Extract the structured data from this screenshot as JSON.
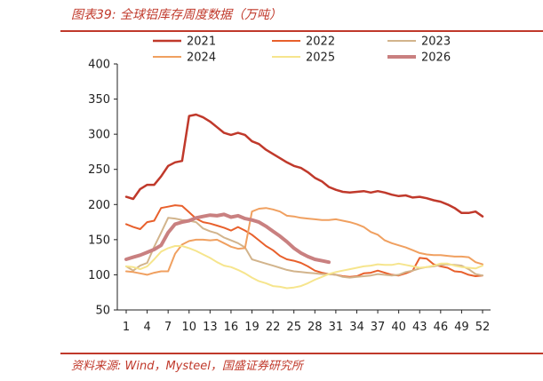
{
  "header": {
    "title": "图表39:  全球铝库存周度数据（万吨）"
  },
  "footer": {
    "source": "资料来源:  Wind，Mysteel，国盛证券研究所"
  },
  "chart_data": {
    "type": "line",
    "title": "图表39:  全球铝库存周度数据（万吨）",
    "xlabel": "",
    "ylabel": "",
    "x_ticks": [
      1,
      4,
      7,
      10,
      13,
      16,
      19,
      22,
      25,
      28,
      31,
      34,
      37,
      40,
      43,
      46,
      49,
      52
    ],
    "xlim": [
      1,
      52
    ],
    "ylim": [
      50,
      400
    ],
    "y_ticks": [
      50,
      100,
      150,
      200,
      250,
      300,
      350,
      400
    ],
    "grid": false,
    "legend": "top",
    "series": [
      {
        "name": "2021",
        "color": "#c0392b",
        "width": 2.5,
        "x": [
          1,
          2,
          3,
          4,
          5,
          6,
          7,
          8,
          9,
          10,
          11,
          12,
          13,
          14,
          15,
          16,
          17,
          18,
          19,
          20,
          21,
          22,
          23,
          24,
          25,
          26,
          27,
          28,
          29,
          30,
          31,
          32,
          33,
          34,
          35,
          36,
          37,
          38,
          39,
          40,
          41,
          42,
          43,
          44,
          45,
          46,
          47,
          48,
          49,
          50,
          51,
          52
        ],
        "values": [
          211,
          208,
          222,
          228,
          228,
          240,
          255,
          260,
          262,
          326,
          328,
          324,
          318,
          310,
          302,
          299,
          302,
          299,
          290,
          286,
          278,
          272,
          266,
          260,
          255,
          252,
          246,
          238,
          233,
          225,
          221,
          218,
          217,
          218,
          219,
          217,
          219,
          217,
          214,
          212,
          213,
          210,
          211,
          209,
          206,
          204,
          200,
          195,
          188,
          188,
          190,
          183
        ]
      },
      {
        "name": "2022",
        "color": "#e8602c",
        "width": 2,
        "x": [
          1,
          2,
          3,
          4,
          5,
          6,
          7,
          8,
          9,
          10,
          11,
          12,
          13,
          14,
          15,
          16,
          17,
          18,
          19,
          20,
          21,
          22,
          23,
          24,
          25,
          26,
          27,
          28,
          29,
          30,
          31,
          32,
          33,
          34,
          35,
          36,
          37,
          38,
          39,
          40,
          41,
          42,
          43,
          44,
          45,
          46,
          47,
          48,
          49,
          50,
          51,
          52
        ],
        "values": [
          172,
          168,
          165,
          175,
          177,
          195,
          197,
          199,
          198,
          189,
          180,
          175,
          173,
          170,
          167,
          163,
          168,
          163,
          157,
          149,
          141,
          135,
          127,
          122,
          120,
          117,
          112,
          106,
          103,
          101,
          100,
          98,
          97,
          98,
          102,
          103,
          106,
          103,
          100,
          99,
          102,
          106,
          124,
          123,
          115,
          112,
          110,
          105,
          104,
          100,
          98,
          99
        ]
      },
      {
        "name": "2023",
        "color": "#d2b48c",
        "width": 2,
        "x": [
          1,
          2,
          3,
          4,
          5,
          6,
          7,
          8,
          9,
          10,
          11,
          12,
          13,
          14,
          15,
          16,
          17,
          18,
          19,
          20,
          21,
          22,
          23,
          24,
          25,
          26,
          27,
          28,
          29,
          30,
          31,
          32,
          33,
          34,
          35,
          36,
          37,
          38,
          39,
          40,
          41,
          42,
          43,
          44,
          45,
          46,
          47,
          48,
          49,
          50,
          51,
          52
        ],
        "values": [
          112,
          106,
          113,
          117,
          140,
          160,
          181,
          180,
          178,
          177,
          175,
          166,
          162,
          159,
          153,
          149,
          145,
          139,
          122,
          119,
          116,
          113,
          110,
          107,
          105,
          104,
          103,
          102,
          101,
          101,
          100,
          97,
          96,
          97,
          98,
          99,
          101,
          100,
          99,
          100,
          104,
          106,
          109,
          111,
          112,
          114,
          115,
          114,
          113,
          108,
          101,
          99
        ]
      },
      {
        "name": "2024",
        "color": "#f0a060",
        "width": 2,
        "x": [
          1,
          2,
          3,
          4,
          5,
          6,
          7,
          8,
          9,
          10,
          11,
          12,
          13,
          14,
          15,
          16,
          17,
          18,
          19,
          20,
          21,
          22,
          23,
          24,
          25,
          26,
          27,
          28,
          29,
          30,
          31,
          32,
          33,
          34,
          35,
          36,
          37,
          38,
          39,
          40,
          41,
          42,
          43,
          44,
          45,
          46,
          47,
          48,
          49,
          50,
          51,
          52
        ],
        "values": [
          105,
          104,
          102,
          100,
          103,
          105,
          105,
          130,
          143,
          148,
          150,
          150,
          149,
          150,
          145,
          140,
          137,
          138,
          190,
          194,
          195,
          193,
          190,
          184,
          183,
          181,
          180,
          179,
          178,
          178,
          179,
          177,
          175,
          172,
          168,
          161,
          157,
          149,
          145,
          142,
          139,
          135,
          131,
          129,
          128,
          128,
          127,
          126,
          126,
          125,
          118,
          115
        ]
      },
      {
        "name": "2025",
        "color": "#f6e58d",
        "width": 2,
        "x": [
          1,
          2,
          3,
          4,
          5,
          6,
          7,
          8,
          9,
          10,
          11,
          12,
          13,
          14,
          15,
          16,
          17,
          18,
          19,
          20,
          21,
          22,
          23,
          24,
          25,
          26,
          27,
          28,
          29,
          30,
          31,
          32,
          33,
          34,
          35,
          36,
          37,
          38,
          39,
          40,
          41,
          42,
          43,
          44,
          45,
          46,
          47,
          48,
          49,
          50,
          51,
          52
        ],
        "values": [
          112,
          111,
          108,
          112,
          122,
          133,
          138,
          141,
          141,
          138,
          134,
          129,
          124,
          118,
          113,
          111,
          107,
          102,
          96,
          91,
          88,
          84,
          83,
          81,
          82,
          84,
          88,
          93,
          97,
          101,
          104,
          106,
          108,
          110,
          112,
          113,
          115,
          114,
          114,
          116,
          114,
          112,
          110,
          111,
          113,
          116,
          116,
          113,
          111,
          110,
          109,
          113
        ]
      },
      {
        "name": "2026",
        "color": "#c98080",
        "width": 4,
        "x": [
          1,
          2,
          3,
          4,
          5,
          6,
          7,
          8,
          9,
          10,
          11,
          12,
          13,
          14,
          15,
          16,
          17,
          18,
          19,
          20,
          21,
          22,
          23,
          24,
          25,
          26,
          27,
          28,
          29,
          30
        ],
        "values": [
          122,
          125,
          128,
          132,
          136,
          142,
          160,
          172,
          175,
          177,
          181,
          183,
          185,
          184,
          186,
          182,
          184,
          180,
          178,
          175,
          169,
          162,
          155,
          147,
          138,
          131,
          126,
          122,
          120,
          118
        ]
      }
    ]
  }
}
